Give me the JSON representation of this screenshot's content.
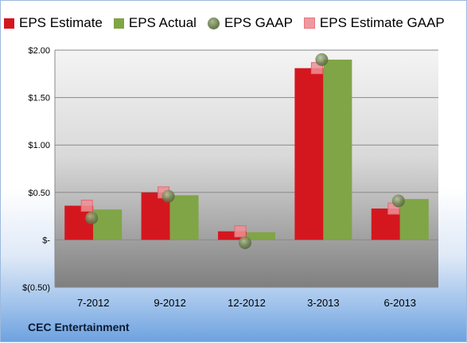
{
  "company": "CEC Entertainment",
  "colors": {
    "estimate": "#d4171f",
    "actual": "#80a546",
    "gaap": "#76895a",
    "estimate_gaap": "#ee8f95"
  },
  "chart_data": {
    "type": "bar",
    "title": "",
    "xlabel": "",
    "ylabel": "",
    "categories": [
      "7-2012",
      "9-2012",
      "12-2012",
      "3-2013",
      "6-2013"
    ],
    "series": [
      {
        "name": "EPS Estimate",
        "marker": "bar",
        "values": [
          0.36,
          0.5,
          0.09,
          1.81,
          0.33
        ]
      },
      {
        "name": "EPS Actual",
        "marker": "bar",
        "values": [
          0.32,
          0.47,
          0.08,
          1.9,
          0.43
        ]
      },
      {
        "name": "EPS GAAP",
        "marker": "circle",
        "values": [
          0.23,
          0.46,
          -0.03,
          1.9,
          0.41
        ]
      },
      {
        "name": "EPS Estimate GAAP",
        "marker": "square",
        "values": [
          0.36,
          0.5,
          0.09,
          1.81,
          0.33
        ]
      }
    ],
    "ylim": [
      -0.5,
      2.0
    ],
    "yticks": [
      2.0,
      1.5,
      1.0,
      0.5,
      0,
      -0.5
    ],
    "ytick_labels": [
      "$2.00",
      "$1.50",
      "$1.00",
      "$0.50",
      "$-",
      "$(0.50)"
    ],
    "grid": true,
    "legend_position": "top"
  }
}
